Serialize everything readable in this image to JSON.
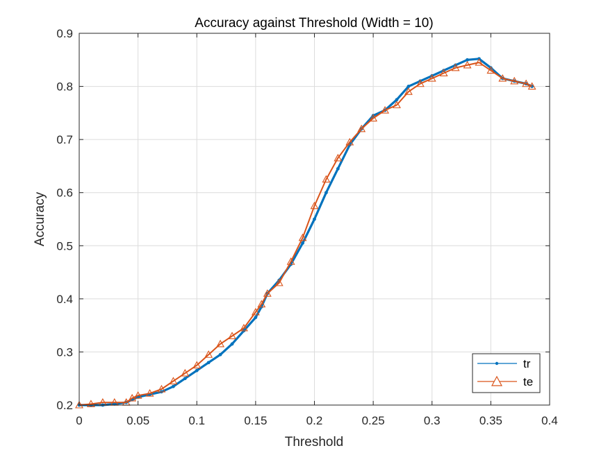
{
  "chart_data": {
    "type": "line",
    "title": "Accuracy against Threshold (Width = 10)",
    "xlabel": "Threshold",
    "ylabel": "Accuracy",
    "xlim": [
      0,
      0.4
    ],
    "ylim": [
      0.2,
      0.9
    ],
    "xticks": [
      0,
      0.05,
      0.1,
      0.15,
      0.2,
      0.25,
      0.3,
      0.35,
      0.4
    ],
    "xtick_labels": [
      "0",
      "0.05",
      "0.1",
      "0.15",
      "0.2",
      "0.25",
      "0.3",
      "0.35",
      "0.4"
    ],
    "yticks": [
      0.2,
      0.3,
      0.4,
      0.5,
      0.6,
      0.7,
      0.8,
      0.9
    ],
    "ytick_labels": [
      "0.2",
      "0.3",
      "0.4",
      "0.5",
      "0.6",
      "0.7",
      "0.8",
      "0.9"
    ],
    "grid": true,
    "legend_position": "bottom-right",
    "series": [
      {
        "name": "tr",
        "color": "#0072BD",
        "marker": "dot",
        "x": [
          0,
          0.01,
          0.02,
          0.03,
          0.04,
          0.045,
          0.05,
          0.06,
          0.07,
          0.08,
          0.09,
          0.1,
          0.11,
          0.12,
          0.13,
          0.14,
          0.15,
          0.155,
          0.16,
          0.17,
          0.18,
          0.19,
          0.2,
          0.21,
          0.22,
          0.23,
          0.24,
          0.25,
          0.26,
          0.27,
          0.28,
          0.29,
          0.3,
          0.31,
          0.32,
          0.33,
          0.34,
          0.35,
          0.36,
          0.37,
          0.38,
          0.385
        ],
        "y": [
          0.2,
          0.2,
          0.2,
          0.202,
          0.205,
          0.21,
          0.215,
          0.22,
          0.225,
          0.235,
          0.25,
          0.265,
          0.28,
          0.295,
          0.315,
          0.34,
          0.365,
          0.385,
          0.41,
          0.435,
          0.465,
          0.505,
          0.55,
          0.6,
          0.645,
          0.69,
          0.72,
          0.745,
          0.755,
          0.775,
          0.8,
          0.81,
          0.82,
          0.83,
          0.84,
          0.85,
          0.852,
          0.835,
          0.815,
          0.81,
          0.805,
          0.8
        ]
      },
      {
        "name": "te",
        "color": "#D95319",
        "marker": "triangle",
        "x": [
          0,
          0.01,
          0.02,
          0.03,
          0.04,
          0.045,
          0.05,
          0.06,
          0.07,
          0.08,
          0.09,
          0.1,
          0.11,
          0.12,
          0.13,
          0.14,
          0.15,
          0.155,
          0.16,
          0.17,
          0.18,
          0.19,
          0.2,
          0.21,
          0.22,
          0.23,
          0.24,
          0.25,
          0.26,
          0.27,
          0.28,
          0.29,
          0.3,
          0.31,
          0.32,
          0.33,
          0.34,
          0.35,
          0.36,
          0.37,
          0.38,
          0.385
        ],
        "y": [
          0.2,
          0.202,
          0.205,
          0.205,
          0.205,
          0.213,
          0.218,
          0.222,
          0.23,
          0.245,
          0.26,
          0.275,
          0.295,
          0.315,
          0.33,
          0.345,
          0.375,
          0.39,
          0.41,
          0.43,
          0.47,
          0.515,
          0.575,
          0.625,
          0.665,
          0.695,
          0.72,
          0.74,
          0.755,
          0.765,
          0.79,
          0.805,
          0.815,
          0.825,
          0.835,
          0.84,
          0.845,
          0.83,
          0.815,
          0.81,
          0.805,
          0.8
        ]
      }
    ]
  }
}
